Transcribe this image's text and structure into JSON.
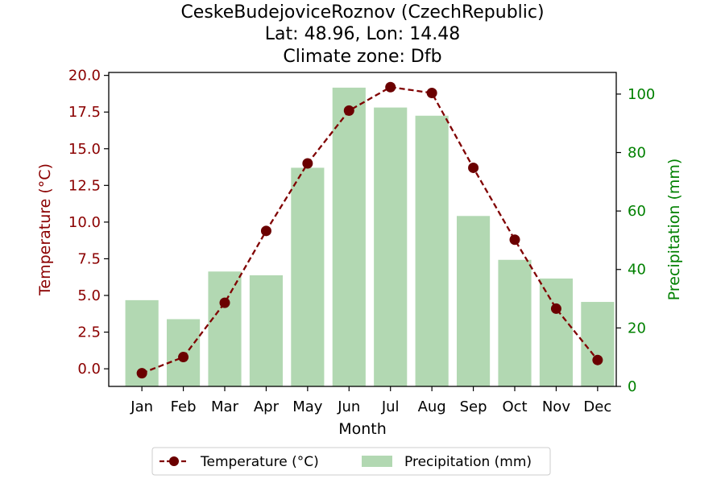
{
  "chart_data": {
    "type": "bar+line",
    "title_lines": [
      "CeskeBudejoviceRoznov (CzechRepublic)",
      "Lat: 48.96, Lon: 14.48",
      "Climate zone: Dfb"
    ],
    "categories": [
      "Jan",
      "Feb",
      "Mar",
      "Apr",
      "May",
      "Jun",
      "Jul",
      "Aug",
      "Sep",
      "Oct",
      "Nov",
      "Dec"
    ],
    "xlabel": "Month",
    "ylabel_left": "Temperature (°C)",
    "ylabel_right": "Precipitation (mm)",
    "ylim_left": [
      -1.2,
      20.2
    ],
    "ylim_right": [
      0,
      107.4
    ],
    "yticks_left": [
      "0.0",
      "2.5",
      "5.0",
      "7.5",
      "10.0",
      "12.5",
      "15.0",
      "17.5",
      "20.0"
    ],
    "yticks_right": [
      "0",
      "20",
      "40",
      "60",
      "80",
      "100"
    ],
    "series": [
      {
        "name": "Temperature (°C)",
        "kind": "line",
        "color": "#800000",
        "values": [
          -0.3,
          0.8,
          4.5,
          9.4,
          14.0,
          17.6,
          19.2,
          18.8,
          13.7,
          8.8,
          4.1,
          0.6
        ]
      },
      {
        "name": "Precipitation (mm)",
        "kind": "bar",
        "color": "#b2d8b2",
        "values": [
          29.5,
          23.0,
          39.3,
          38.0,
          74.8,
          102.2,
          95.4,
          92.6,
          58.3,
          43.3,
          36.9,
          28.9
        ]
      }
    ],
    "legend_position": "bottom-center",
    "grid": false
  }
}
